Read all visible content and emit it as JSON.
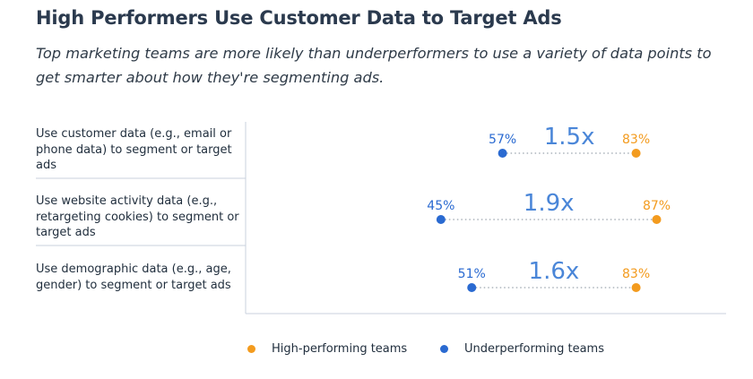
{
  "title": "High Performers Use Customer Data to Target Ads",
  "subtitle": "Top marketing teams are more likely than underperformers to use a variety of data points to get smarter about how they're segmenting ads.",
  "colors": {
    "high": "#f39b1e",
    "under": "#2a6ad1",
    "ratio": "#4a86d8",
    "rule": "#c9d2dc"
  },
  "legend": {
    "high_label": "High-performing teams",
    "under_label": "Underperforming teams"
  },
  "chart_data": {
    "type": "dot-plot",
    "title": "High Performers Use Customer Data to Target Ads",
    "categories": [
      "Use customer data (e.g., email or phone data) to segment or target ads",
      "Use website activity data (e.g., retargeting cookies) to segment or target ads",
      "Use demographic data (e.g., age, gender) to segment or target ads"
    ],
    "series": [
      {
        "name": "Underperforming teams",
        "values": [
          57,
          45,
          51
        ],
        "labels": [
          "57%",
          "45%",
          "51%"
        ]
      },
      {
        "name": "High-performing teams",
        "values": [
          83,
          87,
          83
        ],
        "labels": [
          "83%",
          "87%",
          "83%"
        ]
      }
    ],
    "ratios": [
      "1.5x",
      "1.9x",
      "1.6x"
    ],
    "unit": "%",
    "legend_position": "bottom"
  }
}
